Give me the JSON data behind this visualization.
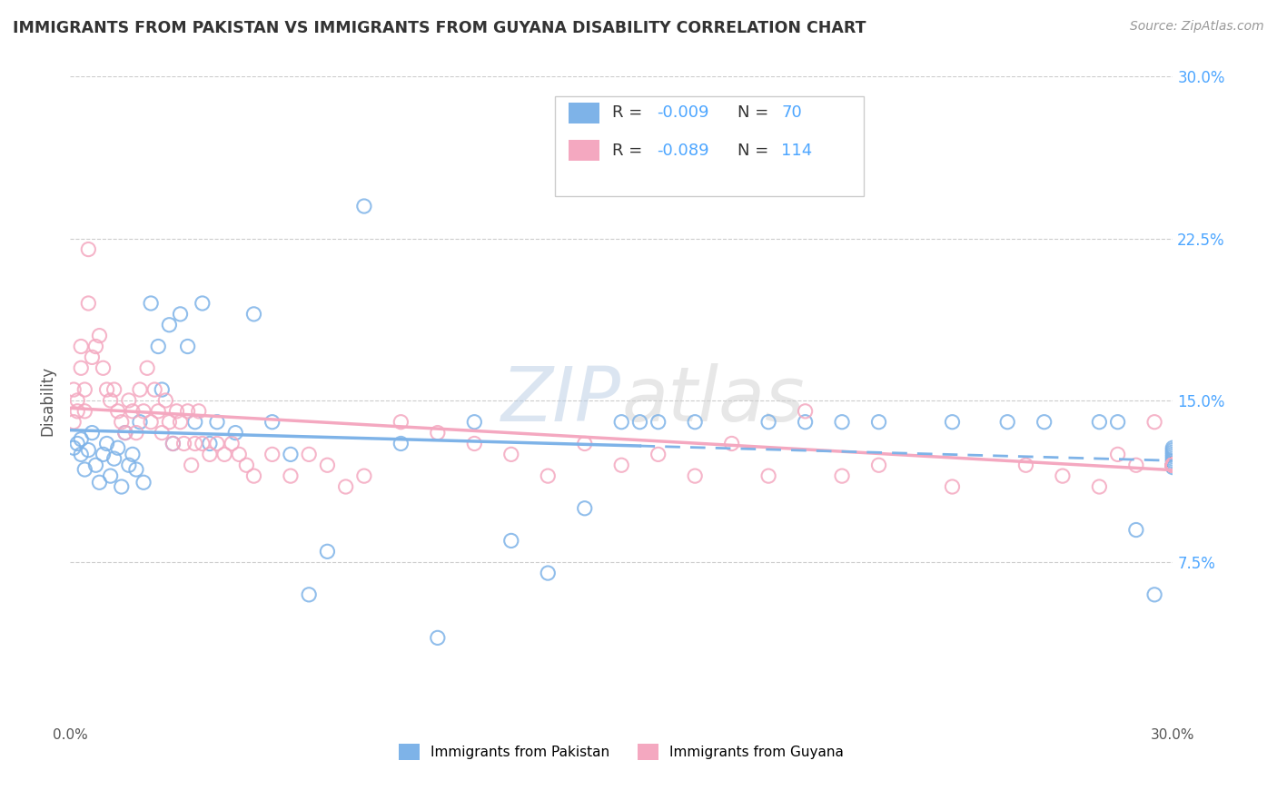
{
  "title": "IMMIGRANTS FROM PAKISTAN VS IMMIGRANTS FROM GUYANA DISABILITY CORRELATION CHART",
  "source": "Source: ZipAtlas.com",
  "ylabel": "Disability",
  "xmin": 0.0,
  "xmax": 0.3,
  "ymin": 0.0,
  "ymax": 0.3,
  "yticks": [
    0.075,
    0.15,
    0.225,
    0.3
  ],
  "ytick_labels": [
    "7.5%",
    "15.0%",
    "22.5%",
    "30.0%"
  ],
  "color_pakistan": "#7EB3E8",
  "color_guyana": "#F4A8C0",
  "watermark_color": "#d0dff0",
  "background_color": "#ffffff",
  "grid_color": "#cccccc",
  "title_color": "#333333",
  "axis_label_color": "#555555",
  "right_ytick_color": "#4da6ff",
  "pakistan_line_end_x": 0.155,
  "pakistan_line_start_y": 0.128,
  "pakistan_line_end_y": 0.127,
  "guyana_line_start_y": 0.133,
  "guyana_line_end_y": 0.12,
  "pakistan_x": [
    0.001,
    0.002,
    0.003,
    0.003,
    0.004,
    0.005,
    0.006,
    0.007,
    0.008,
    0.009,
    0.01,
    0.011,
    0.012,
    0.013,
    0.014,
    0.015,
    0.016,
    0.017,
    0.018,
    0.019,
    0.02,
    0.022,
    0.024,
    0.025,
    0.027,
    0.028,
    0.03,
    0.032,
    0.034,
    0.036,
    0.038,
    0.04,
    0.045,
    0.05,
    0.055,
    0.06,
    0.065,
    0.07,
    0.08,
    0.09,
    0.1,
    0.11,
    0.12,
    0.13,
    0.14,
    0.15,
    0.155,
    0.16,
    0.17,
    0.19,
    0.2,
    0.21,
    0.22,
    0.24,
    0.255,
    0.265,
    0.28,
    0.285,
    0.29,
    0.295,
    0.3,
    0.3,
    0.3,
    0.3,
    0.3,
    0.3,
    0.3,
    0.3,
    0.3,
    0.3
  ],
  "pakistan_y": [
    0.128,
    0.13,
    0.125,
    0.132,
    0.118,
    0.127,
    0.135,
    0.12,
    0.112,
    0.125,
    0.13,
    0.115,
    0.123,
    0.128,
    0.11,
    0.135,
    0.12,
    0.125,
    0.118,
    0.14,
    0.112,
    0.195,
    0.175,
    0.155,
    0.185,
    0.13,
    0.19,
    0.175,
    0.14,
    0.195,
    0.13,
    0.14,
    0.135,
    0.19,
    0.14,
    0.125,
    0.06,
    0.08,
    0.24,
    0.13,
    0.04,
    0.14,
    0.085,
    0.07,
    0.1,
    0.14,
    0.14,
    0.14,
    0.14,
    0.14,
    0.14,
    0.14,
    0.14,
    0.14,
    0.14,
    0.14,
    0.14,
    0.14,
    0.09,
    0.06,
    0.128,
    0.127,
    0.126,
    0.125,
    0.124,
    0.123,
    0.122,
    0.121,
    0.12,
    0.119
  ],
  "guyana_x": [
    0.001,
    0.001,
    0.002,
    0.002,
    0.003,
    0.003,
    0.004,
    0.004,
    0.005,
    0.005,
    0.006,
    0.007,
    0.008,
    0.009,
    0.01,
    0.011,
    0.012,
    0.013,
    0.014,
    0.015,
    0.016,
    0.017,
    0.018,
    0.019,
    0.02,
    0.021,
    0.022,
    0.023,
    0.024,
    0.025,
    0.026,
    0.027,
    0.028,
    0.029,
    0.03,
    0.031,
    0.032,
    0.033,
    0.034,
    0.035,
    0.036,
    0.038,
    0.04,
    0.042,
    0.044,
    0.046,
    0.048,
    0.05,
    0.055,
    0.06,
    0.065,
    0.07,
    0.075,
    0.08,
    0.09,
    0.1,
    0.11,
    0.12,
    0.13,
    0.14,
    0.15,
    0.16,
    0.17,
    0.18,
    0.19,
    0.2,
    0.21,
    0.22,
    0.24,
    0.26,
    0.27,
    0.28,
    0.285,
    0.29,
    0.295,
    0.3,
    0.3,
    0.3,
    0.3,
    0.3,
    0.3,
    0.3,
    0.3,
    0.3,
    0.3,
    0.3,
    0.3,
    0.3,
    0.3,
    0.3,
    0.3,
    0.3,
    0.3,
    0.3,
    0.3,
    0.3,
    0.3,
    0.3,
    0.3,
    0.3,
    0.3,
    0.3,
    0.3,
    0.3,
    0.3,
    0.3,
    0.3,
    0.3,
    0.3,
    0.3,
    0.3,
    0.3,
    0.3,
    0.3
  ],
  "guyana_y": [
    0.155,
    0.14,
    0.15,
    0.145,
    0.175,
    0.165,
    0.155,
    0.145,
    0.22,
    0.195,
    0.17,
    0.175,
    0.18,
    0.165,
    0.155,
    0.15,
    0.155,
    0.145,
    0.14,
    0.135,
    0.15,
    0.145,
    0.135,
    0.155,
    0.145,
    0.165,
    0.14,
    0.155,
    0.145,
    0.135,
    0.15,
    0.14,
    0.13,
    0.145,
    0.14,
    0.13,
    0.145,
    0.12,
    0.13,
    0.145,
    0.13,
    0.125,
    0.13,
    0.125,
    0.13,
    0.125,
    0.12,
    0.115,
    0.125,
    0.115,
    0.125,
    0.12,
    0.11,
    0.115,
    0.14,
    0.135,
    0.13,
    0.125,
    0.115,
    0.13,
    0.12,
    0.125,
    0.115,
    0.13,
    0.115,
    0.145,
    0.115,
    0.12,
    0.11,
    0.12,
    0.115,
    0.11,
    0.125,
    0.12,
    0.14,
    0.12,
    0.12,
    0.12,
    0.12,
    0.12,
    0.12,
    0.12,
    0.12,
    0.12,
    0.12,
    0.12,
    0.12,
    0.12,
    0.12,
    0.12,
    0.12,
    0.12,
    0.12,
    0.12,
    0.12,
    0.12,
    0.12,
    0.12,
    0.12,
    0.12,
    0.12,
    0.12,
    0.12,
    0.12,
    0.12,
    0.12,
    0.12,
    0.12,
    0.12,
    0.12,
    0.12,
    0.12,
    0.12,
    0.12
  ]
}
